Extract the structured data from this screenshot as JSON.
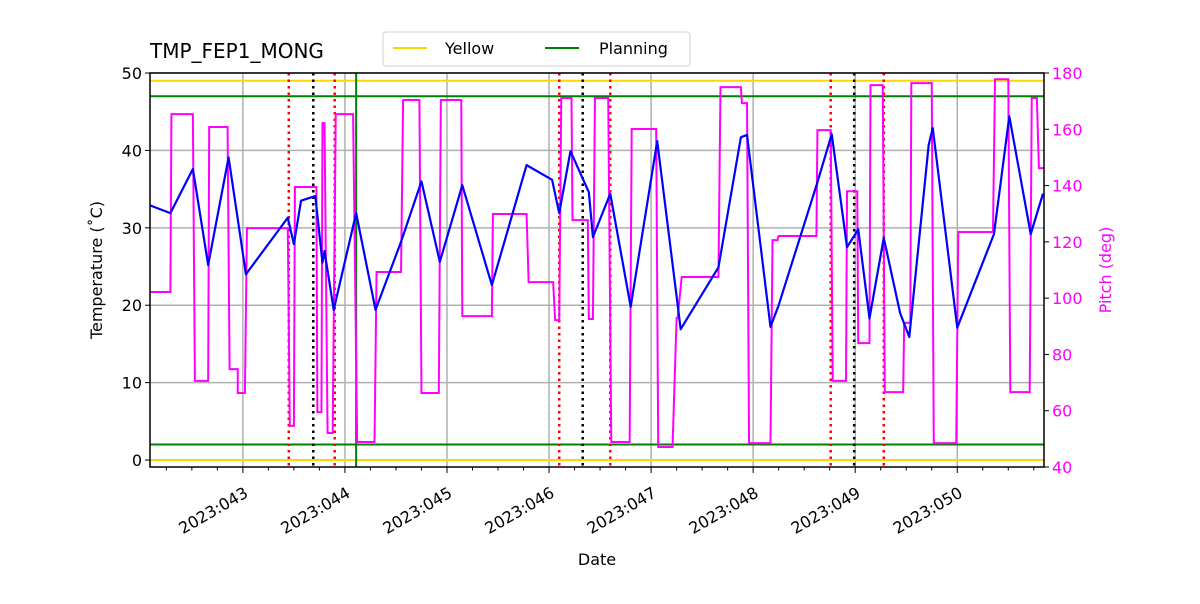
{
  "chart_data": {
    "type": "line",
    "title": "TMP_FEP1_MONG",
    "xlabel": "Date",
    "ylabel": "Temperature ($^\\circ$C)",
    "ylabel_display": "Temperature (˚C)",
    "y2label": "Pitch (deg)",
    "xlim": [
      42.09,
      50.85
    ],
    "ylim": [
      -0.9,
      50
    ],
    "y2lim": [
      40,
      180
    ],
    "grid": true,
    "x_ticks": [
      {
        "value": 43,
        "label": "2023:043"
      },
      {
        "value": 44,
        "label": "2023:044"
      },
      {
        "value": 45,
        "label": "2023:045"
      },
      {
        "value": 46,
        "label": "2023:046"
      },
      {
        "value": 47,
        "label": "2023:047"
      },
      {
        "value": 48,
        "label": "2023:048"
      },
      {
        "value": 49,
        "label": "2023:049"
      },
      {
        "value": 50,
        "label": "2023:050"
      }
    ],
    "y_ticks": [
      "0",
      "10",
      "20",
      "30",
      "40",
      "50"
    ],
    "y2_ticks": [
      "40",
      "60",
      "80",
      "100",
      "120",
      "140",
      "160",
      "180"
    ],
    "legend": {
      "placement": "top",
      "entries": [
        {
          "label": "Yellow",
          "color": "#ffd700"
        },
        {
          "label": "Planning",
          "color": "#008000"
        }
      ]
    },
    "limits": {
      "yellow": {
        "color": "#ffd700",
        "values": [
          49,
          0
        ]
      },
      "planning": {
        "color": "#008000",
        "values": [
          47,
          2
        ]
      }
    },
    "vlines": {
      "red_dotted": {
        "color": "#ff0000",
        "x": [
          43.45,
          43.9,
          46.1,
          46.6,
          48.76,
          49.28
        ]
      },
      "black_dotted": {
        "color": "#000000",
        "x": [
          43.69,
          46.33,
          48.99
        ]
      },
      "green_solid": {
        "color": "#008000",
        "x": [
          44.11
        ]
      }
    },
    "series": [
      {
        "axis": "left",
        "color": "#0000ff",
        "points": [
          [
            42.09,
            32.9
          ],
          [
            42.29,
            31.9
          ],
          [
            42.51,
            37.6
          ],
          [
            42.66,
            25.2
          ],
          [
            42.86,
            39.1
          ],
          [
            43.03,
            24.0
          ],
          [
            43.44,
            31.3
          ],
          [
            43.5,
            27.9
          ],
          [
            43.57,
            33.5
          ],
          [
            43.71,
            34.1
          ],
          [
            43.78,
            25.5
          ],
          [
            43.8,
            27.0
          ],
          [
            43.89,
            19.4
          ],
          [
            44.11,
            31.9
          ],
          [
            44.3,
            19.4
          ],
          [
            44.55,
            28.2
          ],
          [
            44.75,
            36.0
          ],
          [
            44.93,
            25.6
          ],
          [
            45.15,
            35.5
          ],
          [
            45.44,
            22.6
          ],
          [
            45.78,
            38.1
          ],
          [
            46.03,
            36.2
          ],
          [
            46.1,
            31.9
          ],
          [
            46.21,
            39.9
          ],
          [
            46.39,
            34.6
          ],
          [
            46.43,
            28.8
          ],
          [
            46.6,
            34.4
          ],
          [
            46.8,
            19.8
          ],
          [
            47.06,
            41.2
          ],
          [
            47.29,
            16.9
          ],
          [
            47.66,
            24.9
          ],
          [
            47.88,
            41.7
          ],
          [
            47.94,
            42.0
          ],
          [
            48.17,
            17.2
          ],
          [
            48.25,
            20.0
          ],
          [
            48.63,
            35.9
          ],
          [
            48.77,
            42.1
          ],
          [
            48.92,
            27.5
          ],
          [
            49.03,
            29.8
          ],
          [
            49.14,
            18.3
          ],
          [
            49.28,
            28.7
          ],
          [
            49.44,
            19.0
          ],
          [
            49.53,
            15.9
          ],
          [
            49.72,
            40.7
          ],
          [
            49.76,
            42.9
          ],
          [
            50.0,
            17.1
          ],
          [
            50.36,
            29.2
          ],
          [
            50.51,
            44.4
          ],
          [
            50.72,
            29.2
          ],
          [
            50.84,
            34.4
          ]
        ]
      },
      {
        "axis": "right",
        "color": "#ff00ff",
        "points": [
          [
            42.09,
            102.2
          ],
          [
            42.29,
            102.2
          ],
          [
            42.3,
            165.4
          ],
          [
            42.51,
            165.4
          ],
          [
            42.53,
            70.6
          ],
          [
            42.66,
            70.6
          ],
          [
            42.67,
            160.8
          ],
          [
            42.85,
            160.8
          ],
          [
            42.87,
            74.8
          ],
          [
            42.95,
            74.8
          ],
          [
            42.95,
            66.3
          ],
          [
            43.02,
            66.3
          ],
          [
            43.04,
            124.9
          ],
          [
            43.44,
            124.9
          ],
          [
            43.46,
            54.6
          ],
          [
            43.5,
            54.6
          ],
          [
            43.51,
            139.5
          ],
          [
            43.72,
            139.5
          ],
          [
            43.73,
            59.5
          ],
          [
            43.77,
            59.5
          ],
          [
            43.78,
            162.2
          ],
          [
            43.8,
            162.2
          ],
          [
            43.83,
            52.1
          ],
          [
            43.88,
            52.1
          ],
          [
            43.91,
            165.4
          ],
          [
            44.08,
            165.4
          ],
          [
            44.12,
            48.9
          ],
          [
            44.29,
            48.9
          ],
          [
            44.31,
            109.3
          ],
          [
            44.55,
            109.3
          ],
          [
            44.57,
            170.4
          ],
          [
            44.73,
            170.4
          ],
          [
            44.75,
            66.3
          ],
          [
            44.92,
            66.3
          ],
          [
            44.94,
            170.4
          ],
          [
            45.14,
            170.4
          ],
          [
            45.15,
            93.6
          ],
          [
            45.44,
            93.6
          ],
          [
            45.45,
            129.9
          ],
          [
            45.78,
            129.9
          ],
          [
            45.8,
            105.7
          ],
          [
            46.04,
            105.7
          ],
          [
            46.06,
            92.2
          ],
          [
            46.1,
            92.2
          ],
          [
            46.12,
            171.1
          ],
          [
            46.22,
            171.1
          ],
          [
            46.23,
            127.7
          ],
          [
            46.38,
            127.7
          ],
          [
            46.39,
            92.6
          ],
          [
            46.43,
            92.6
          ],
          [
            46.45,
            171.1
          ],
          [
            46.58,
            171.1
          ],
          [
            46.61,
            48.9
          ],
          [
            46.79,
            48.9
          ],
          [
            46.81,
            160.1
          ],
          [
            47.05,
            160.1
          ],
          [
            47.07,
            47.1
          ],
          [
            47.21,
            47.1
          ],
          [
            47.25,
            92.9
          ],
          [
            47.26,
            92.9
          ],
          [
            47.3,
            107.5
          ],
          [
            47.66,
            107.5
          ],
          [
            47.68,
            175.0
          ],
          [
            47.88,
            175.0
          ],
          [
            47.89,
            169.3
          ],
          [
            47.94,
            169.3
          ],
          [
            47.96,
            48.5
          ],
          [
            48.17,
            48.5
          ],
          [
            48.19,
            120.6
          ],
          [
            48.24,
            120.6
          ],
          [
            48.25,
            122.1
          ],
          [
            48.62,
            122.1
          ],
          [
            48.63,
            159.7
          ],
          [
            48.76,
            159.7
          ],
          [
            48.78,
            70.6
          ],
          [
            48.91,
            70.6
          ],
          [
            48.92,
            138.0
          ],
          [
            49.02,
            138.0
          ],
          [
            49.03,
            84.0
          ],
          [
            49.14,
            84.0
          ],
          [
            49.15,
            175.7
          ],
          [
            49.27,
            175.7
          ],
          [
            49.29,
            66.6
          ],
          [
            49.47,
            66.6
          ],
          [
            49.48,
            91.2
          ],
          [
            49.54,
            91.2
          ],
          [
            49.55,
            176.4
          ],
          [
            49.75,
            176.4
          ],
          [
            49.77,
            48.5
          ],
          [
            49.99,
            48.5
          ],
          [
            50.01,
            123.5
          ],
          [
            50.35,
            123.5
          ],
          [
            50.37,
            177.8
          ],
          [
            50.5,
            177.8
          ],
          [
            50.52,
            66.6
          ],
          [
            50.71,
            66.6
          ],
          [
            50.73,
            171.1
          ],
          [
            50.78,
            171.1
          ],
          [
            50.8,
            146.2
          ],
          [
            50.85,
            146.2
          ]
        ]
      }
    ]
  }
}
